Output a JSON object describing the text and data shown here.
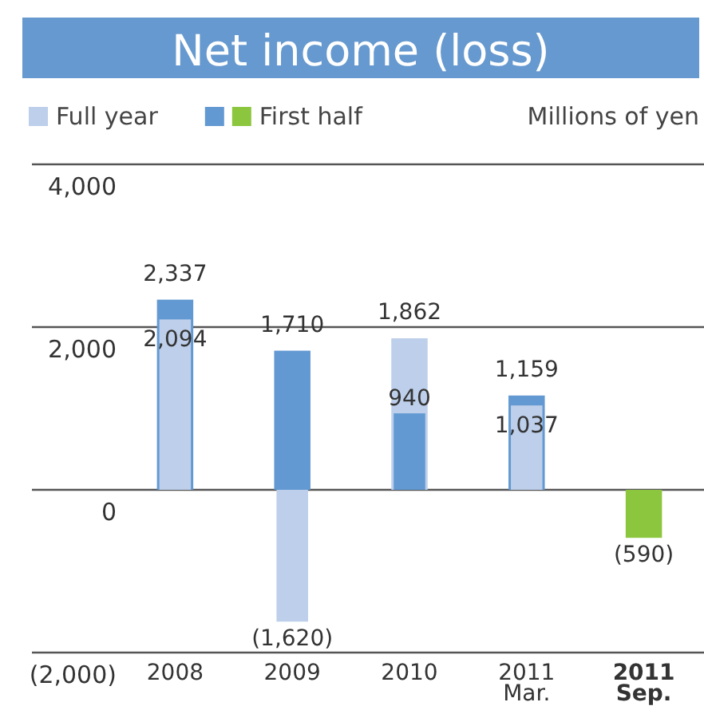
{
  "chart_data": {
    "type": "bar",
    "title": "Net income (loss)",
    "ylabel": "Millions of yen",
    "categories": [
      "2008",
      "2009",
      "2010",
      "2011\nMar.",
      "2011\nSep."
    ],
    "series": [
      {
        "name": "Full year",
        "color": "#bdcfea",
        "values": [
          2094,
          -1620,
          1862,
          1037,
          null
        ],
        "value_labels": [
          "2,094",
          "(1,620)",
          "1,862",
          "1,037",
          null
        ]
      },
      {
        "name": "First half",
        "color": "#6399d2",
        "colors": [
          "#6399d2",
          "#6399d2",
          "#6399d2",
          "#6399d2",
          "#8cc63f"
        ],
        "values": [
          2337,
          1710,
          940,
          1159,
          -590
        ],
        "value_labels": [
          "2,337",
          "1,710",
          "940",
          "1,159",
          "(590)"
        ]
      }
    ],
    "ylim": [
      -2000,
      4000
    ],
    "yticks": [
      {
        "value": -2000,
        "label": "(2,000)"
      },
      {
        "value": 0,
        "label": "0"
      },
      {
        "value": 2000,
        "label": "2,000"
      },
      {
        "value": 4000,
        "label": "4,000"
      }
    ],
    "grid": "y",
    "legend": "top left"
  }
}
